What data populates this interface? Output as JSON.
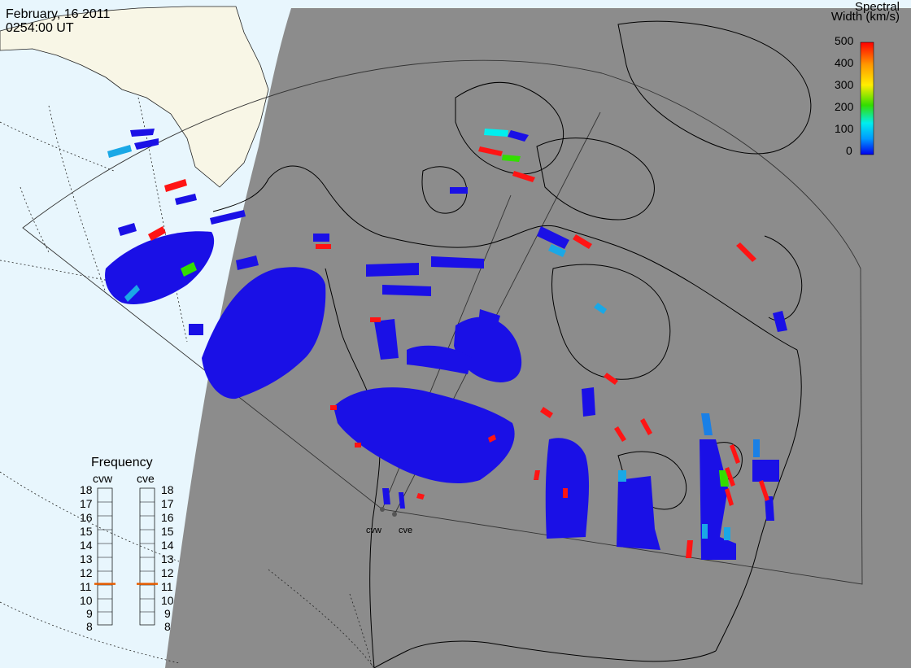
{
  "header": {
    "date": "February, 16 2011",
    "time": "0254:00 UT"
  },
  "colorbar": {
    "title_line1": "Spectral",
    "title_line2": "Width (km/s)",
    "ticks": [
      "500",
      "400",
      "300",
      "200",
      "100",
      "0"
    ],
    "range": [
      0,
      500
    ],
    "colors": [
      "#ff0000",
      "#ff9900",
      "#ffee00",
      "#33dd00",
      "#00eeee",
      "#0099ff",
      "#0000ee"
    ]
  },
  "frequency": {
    "title": "Frequency",
    "radars": [
      "cvw",
      "cve"
    ],
    "ticks": [
      "18",
      "17",
      "16",
      "15",
      "14",
      "13",
      "12",
      "11",
      "10",
      "9",
      "8"
    ],
    "current_mhz": {
      "cvw": 11,
      "cve": 11
    },
    "indicator_color": "#e65c00"
  },
  "sites": {
    "west": "cvw",
    "east": "cve"
  },
  "colors": {
    "ocean_sunlit": "#e8f6fd",
    "land_sunlit": "#f8f6e6",
    "night": "#8c8c8c",
    "scatter_main": "#1a10e6"
  }
}
